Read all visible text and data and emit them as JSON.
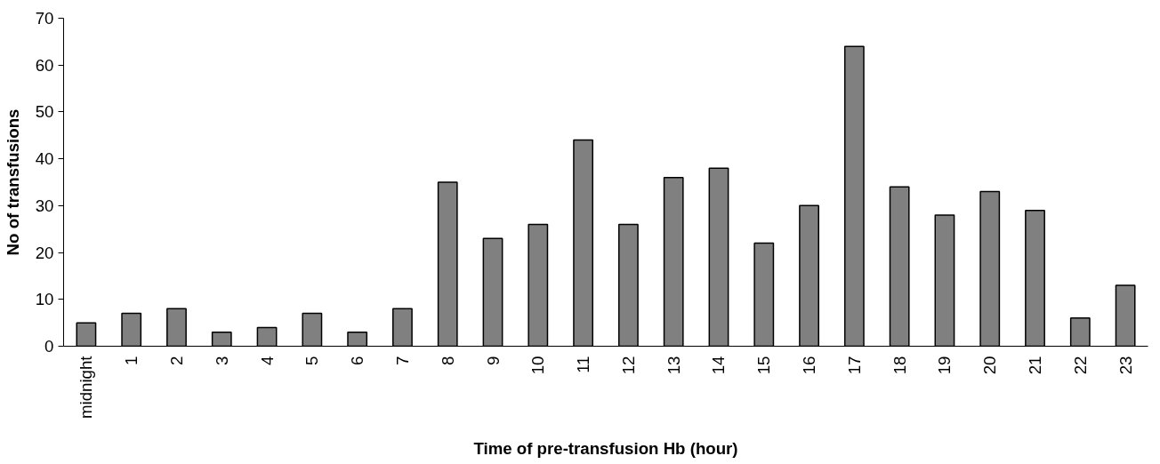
{
  "chart_data": {
    "type": "bar",
    "xlabel": "Time of pre-transfusion Hb (hour)",
    "ylabel": "No of transfusions",
    "categories": [
      "midnight",
      "1",
      "2",
      "3",
      "4",
      "5",
      "6",
      "7",
      "8",
      "9",
      "10",
      "11",
      "12",
      "13",
      "14",
      "15",
      "16",
      "17",
      "18",
      "19",
      "20",
      "21",
      "22",
      "23"
    ],
    "values": [
      5,
      7,
      8,
      3,
      4,
      7,
      3,
      8,
      35,
      23,
      26,
      44,
      26,
      36,
      38,
      22,
      30,
      64,
      34,
      28,
      33,
      29,
      6,
      13
    ],
    "color": "#808080",
    "ylim": [
      0,
      70
    ],
    "yticks": [
      0,
      10,
      20,
      30,
      40,
      50,
      60,
      70
    ],
    "grid": false
  }
}
